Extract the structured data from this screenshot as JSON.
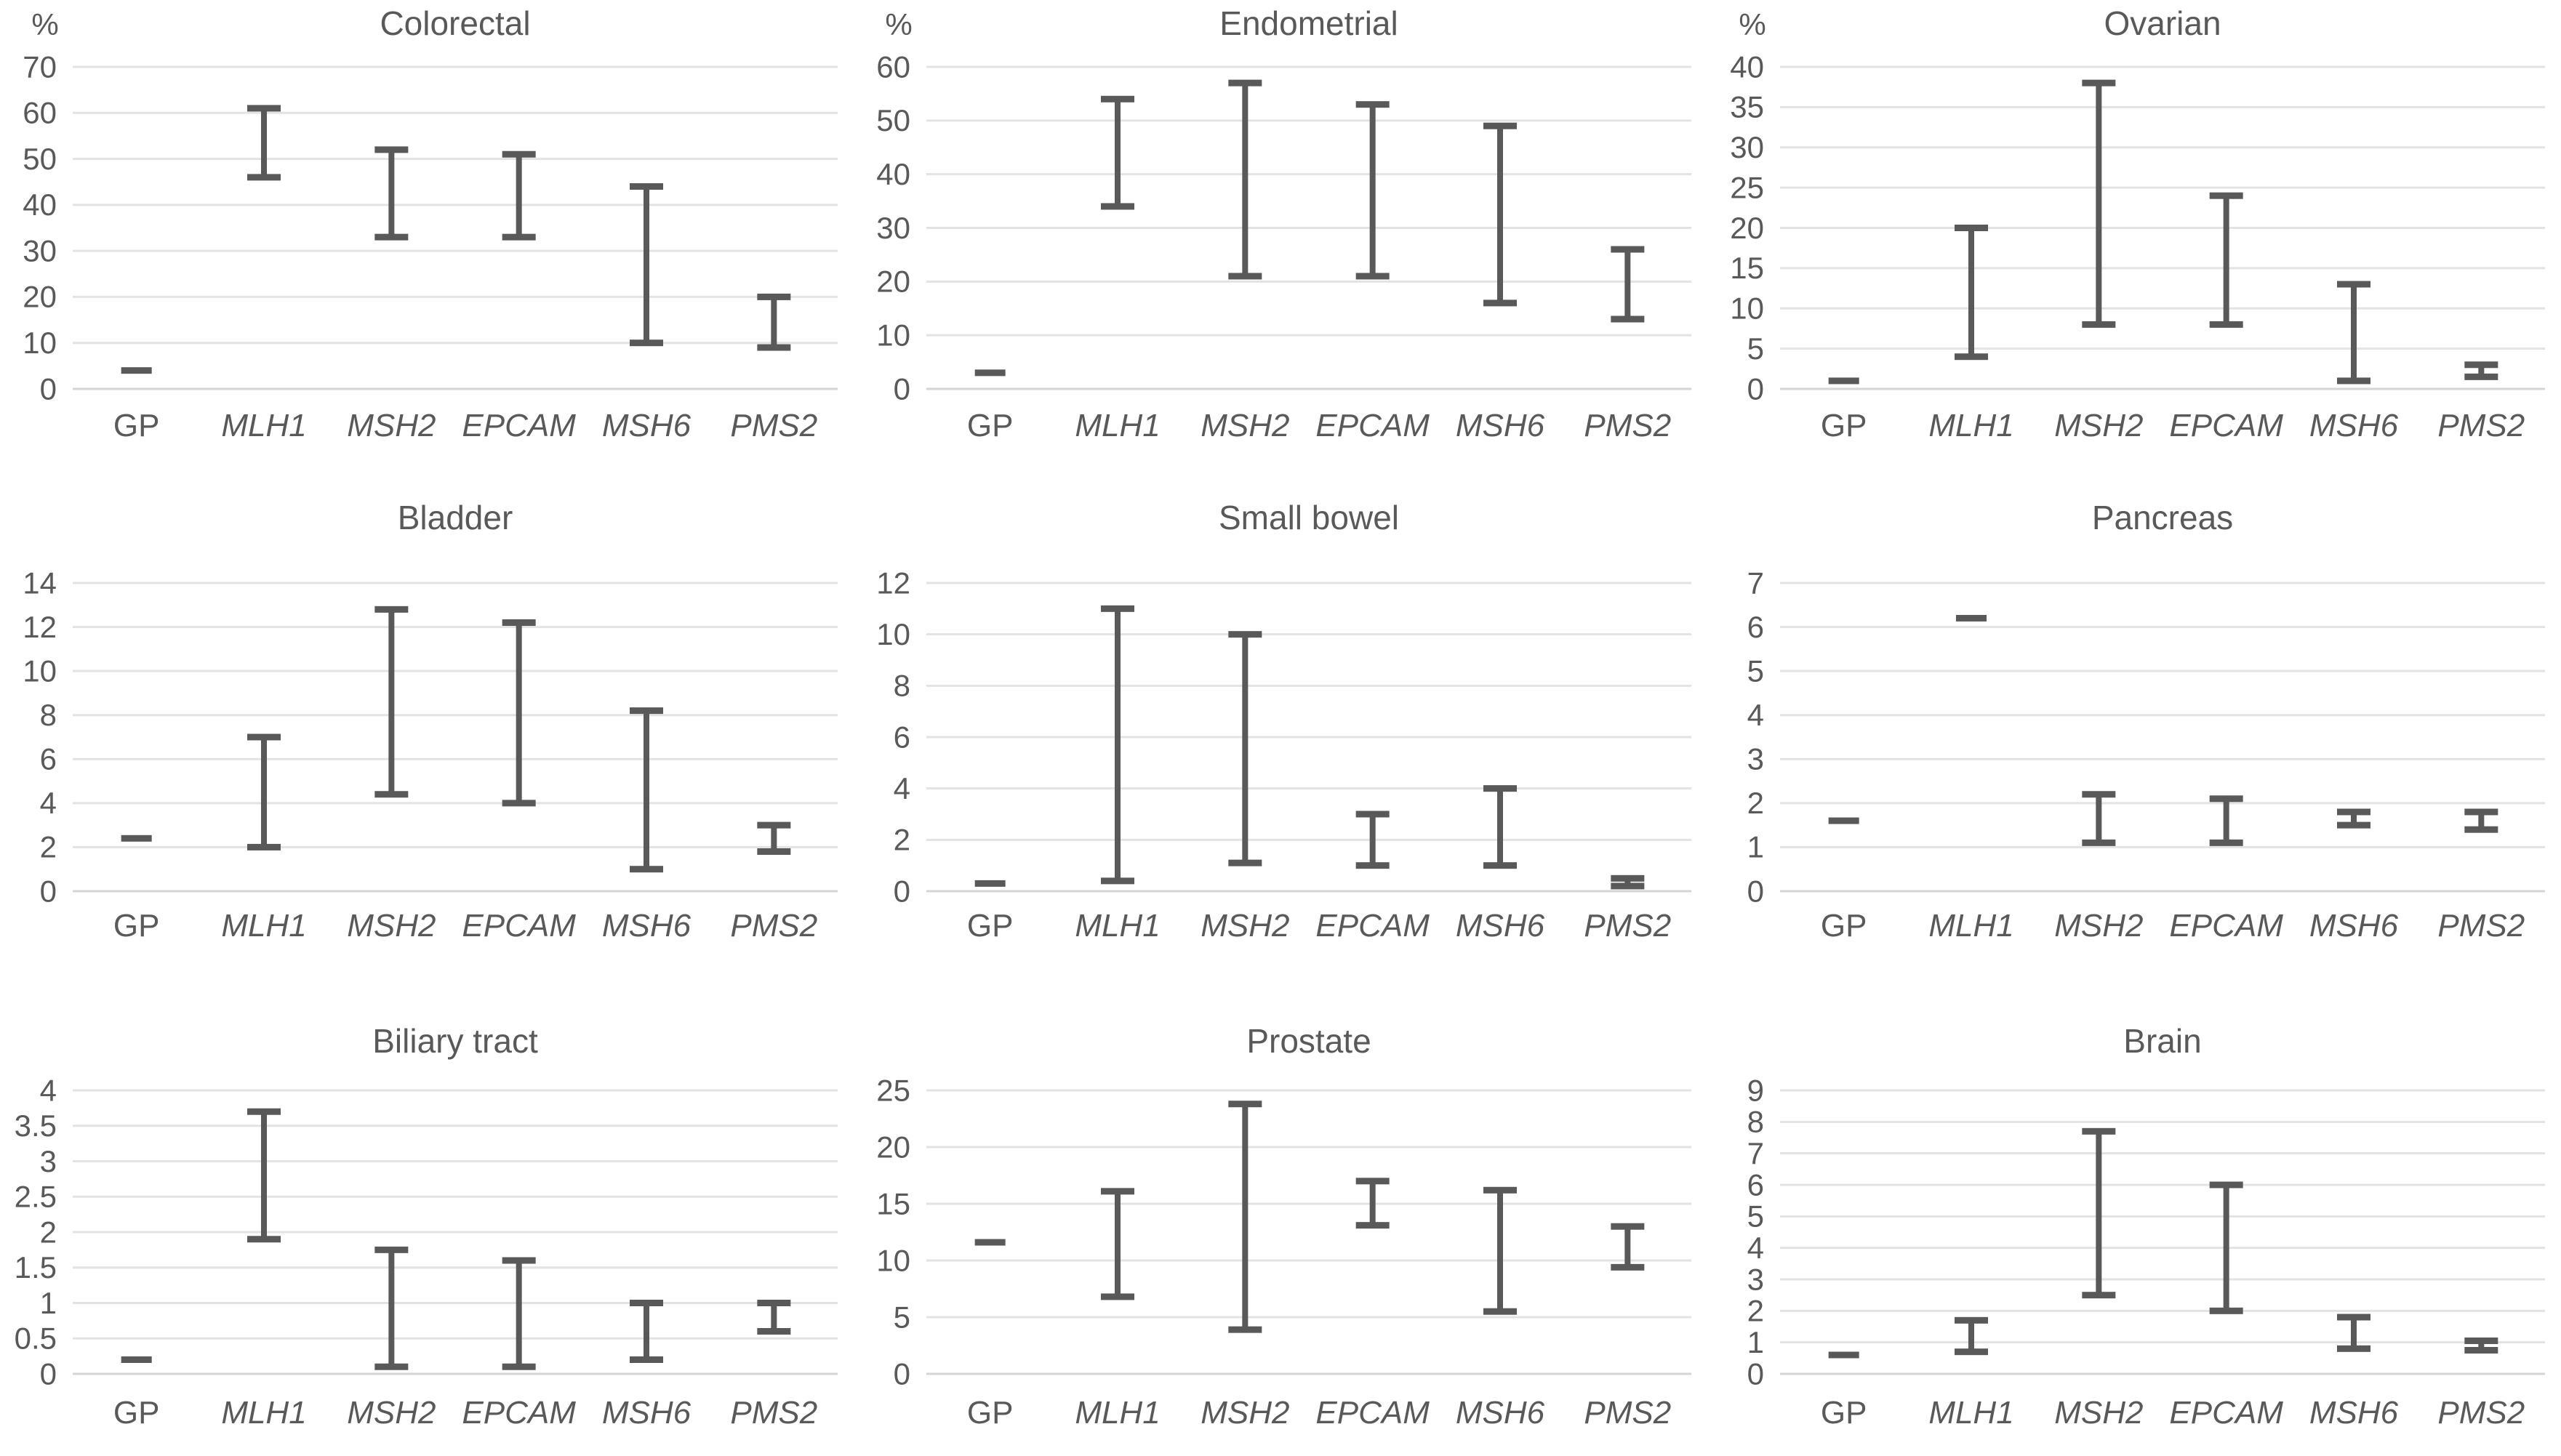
{
  "colors": {
    "bar": "#595959",
    "text": "#595959",
    "gridline": "#e3e3e3",
    "zero_line": "#d5d5d5"
  },
  "chart_data": [
    {
      "type": "range-bar",
      "title": "Colorectal",
      "unit": "%",
      "ylim": [
        0,
        70
      ],
      "yticks": [
        0,
        10,
        20,
        30,
        40,
        50,
        60,
        70
      ],
      "grid": true,
      "categories": [
        {
          "label": "GP",
          "italic": false
        },
        {
          "label": "MLH1",
          "italic": true
        },
        {
          "label": "MSH2",
          "italic": true
        },
        {
          "label": "EPCAM",
          "italic": true
        },
        {
          "label": "MSH6",
          "italic": true
        },
        {
          "label": "PMS2",
          "italic": true
        }
      ],
      "ranges": [
        {
          "category": "GP",
          "low": 4,
          "high": 4
        },
        {
          "category": "MLH1",
          "low": 46,
          "high": 61
        },
        {
          "category": "MSH2",
          "low": 33,
          "high": 52
        },
        {
          "category": "EPCAM",
          "low": 33,
          "high": 51
        },
        {
          "category": "MSH6",
          "low": 10,
          "high": 44
        },
        {
          "category": "PMS2",
          "low": 9,
          "high": 20
        }
      ]
    },
    {
      "type": "range-bar",
      "title": "Endometrial",
      "unit": "%",
      "ylim": [
        0,
        60
      ],
      "yticks": [
        0,
        10,
        20,
        30,
        40,
        50,
        60
      ],
      "grid": true,
      "categories": [
        {
          "label": "GP",
          "italic": false
        },
        {
          "label": "MLH1",
          "italic": true
        },
        {
          "label": "MSH2",
          "italic": true
        },
        {
          "label": "EPCAM",
          "italic": true
        },
        {
          "label": "MSH6",
          "italic": true
        },
        {
          "label": "PMS2",
          "italic": true
        }
      ],
      "ranges": [
        {
          "category": "GP",
          "low": 3,
          "high": 3
        },
        {
          "category": "MLH1",
          "low": 34,
          "high": 54
        },
        {
          "category": "MSH2",
          "low": 21,
          "high": 57
        },
        {
          "category": "EPCAM",
          "low": 21,
          "high": 53
        },
        {
          "category": "MSH6",
          "low": 16,
          "high": 49
        },
        {
          "category": "PMS2",
          "low": 13,
          "high": 26
        }
      ]
    },
    {
      "type": "range-bar",
      "title": "Ovarian",
      "unit": "%",
      "ylim": [
        0,
        40
      ],
      "yticks": [
        0,
        5,
        10,
        15,
        20,
        25,
        30,
        35,
        40
      ],
      "grid": true,
      "categories": [
        {
          "label": "GP",
          "italic": false
        },
        {
          "label": "MLH1",
          "italic": true
        },
        {
          "label": "MSH2",
          "italic": true
        },
        {
          "label": "EPCAM",
          "italic": true
        },
        {
          "label": "MSH6",
          "italic": true
        },
        {
          "label": "PMS2",
          "italic": true
        }
      ],
      "ranges": [
        {
          "category": "GP",
          "low": 1,
          "high": 1
        },
        {
          "category": "MLH1",
          "low": 4,
          "high": 20
        },
        {
          "category": "MSH2",
          "low": 8,
          "high": 38
        },
        {
          "category": "EPCAM",
          "low": 8,
          "high": 24
        },
        {
          "category": "MSH6",
          "low": 1,
          "high": 13
        },
        {
          "category": "PMS2",
          "low": 1.5,
          "high": 3
        }
      ]
    },
    {
      "type": "range-bar",
      "title": "Bladder",
      "unit": null,
      "ylim": [
        0,
        14
      ],
      "yticks": [
        0,
        2,
        4,
        6,
        8,
        10,
        12,
        14
      ],
      "grid": true,
      "categories": [
        {
          "label": "GP",
          "italic": false
        },
        {
          "label": "MLH1",
          "italic": true
        },
        {
          "label": "MSH2",
          "italic": true
        },
        {
          "label": "EPCAM",
          "italic": true
        },
        {
          "label": "MSH6",
          "italic": true
        },
        {
          "label": "PMS2",
          "italic": true
        }
      ],
      "ranges": [
        {
          "category": "GP",
          "low": 2.4,
          "high": 2.4
        },
        {
          "category": "MLH1",
          "low": 2,
          "high": 7
        },
        {
          "category": "MSH2",
          "low": 4.4,
          "high": 12.8
        },
        {
          "category": "EPCAM",
          "low": 4,
          "high": 12.2
        },
        {
          "category": "MSH6",
          "low": 1,
          "high": 8.2
        },
        {
          "category": "PMS2",
          "low": 1.8,
          "high": 3
        }
      ]
    },
    {
      "type": "range-bar",
      "title": "Small bowel",
      "unit": null,
      "ylim": [
        0,
        12
      ],
      "yticks": [
        0,
        2,
        4,
        6,
        8,
        10,
        12
      ],
      "grid": true,
      "categories": [
        {
          "label": "GP",
          "italic": false
        },
        {
          "label": "MLH1",
          "italic": true
        },
        {
          "label": "MSH2",
          "italic": true
        },
        {
          "label": "EPCAM",
          "italic": true
        },
        {
          "label": "MSH6",
          "italic": true
        },
        {
          "label": "PMS2",
          "italic": true
        }
      ],
      "ranges": [
        {
          "category": "GP",
          "low": 0.3,
          "high": 0.3
        },
        {
          "category": "MLH1",
          "low": 0.4,
          "high": 11
        },
        {
          "category": "MSH2",
          "low": 1.1,
          "high": 10
        },
        {
          "category": "EPCAM",
          "low": 1,
          "high": 3
        },
        {
          "category": "MSH6",
          "low": 1,
          "high": 4
        },
        {
          "category": "PMS2",
          "low": 0.2,
          "high": 0.5
        }
      ]
    },
    {
      "type": "range-bar",
      "title": "Pancreas",
      "unit": null,
      "ylim": [
        0,
        7
      ],
      "yticks": [
        0,
        1,
        2,
        3,
        4,
        5,
        6,
        7
      ],
      "grid": true,
      "categories": [
        {
          "label": "GP",
          "italic": false
        },
        {
          "label": "MLH1",
          "italic": true
        },
        {
          "label": "MSH2",
          "italic": true
        },
        {
          "label": "EPCAM",
          "italic": true
        },
        {
          "label": "MSH6",
          "italic": true
        },
        {
          "label": "PMS2",
          "italic": true
        }
      ],
      "ranges": [
        {
          "category": "GP",
          "low": 1.6,
          "high": 1.6
        },
        {
          "category": "MLH1",
          "low": 6.2,
          "high": 6.2
        },
        {
          "category": "MSH2",
          "low": 1.1,
          "high": 2.2
        },
        {
          "category": "EPCAM",
          "low": 1.1,
          "high": 2.1
        },
        {
          "category": "MSH6",
          "low": 1.5,
          "high": 1.8
        },
        {
          "category": "PMS2",
          "low": 1.4,
          "high": 1.8
        }
      ]
    },
    {
      "type": "range-bar",
      "title": "Biliary tract",
      "unit": null,
      "ylim": [
        0,
        4
      ],
      "yticks": [
        0,
        0.5,
        1,
        1.5,
        2,
        2.5,
        3,
        3.5,
        4
      ],
      "grid": true,
      "categories": [
        {
          "label": "GP",
          "italic": false
        },
        {
          "label": "MLH1",
          "italic": true
        },
        {
          "label": "MSH2",
          "italic": true
        },
        {
          "label": "EPCAM",
          "italic": true
        },
        {
          "label": "MSH6",
          "italic": true
        },
        {
          "label": "PMS2",
          "italic": true
        }
      ],
      "ranges": [
        {
          "category": "GP",
          "low": 0.2,
          "high": 0.2
        },
        {
          "category": "MLH1",
          "low": 1.9,
          "high": 3.7
        },
        {
          "category": "MSH2",
          "low": 0.1,
          "high": 1.75
        },
        {
          "category": "EPCAM",
          "low": 0.1,
          "high": 1.6
        },
        {
          "category": "MSH6",
          "low": 0.2,
          "high": 1
        },
        {
          "category": "PMS2",
          "low": 0.6,
          "high": 1
        }
      ]
    },
    {
      "type": "range-bar",
      "title": "Prostate",
      "unit": null,
      "ylim": [
        0,
        25
      ],
      "yticks": [
        0,
        5,
        10,
        15,
        20,
        25
      ],
      "grid": true,
      "categories": [
        {
          "label": "GP",
          "italic": false
        },
        {
          "label": "MLH1",
          "italic": true
        },
        {
          "label": "MSH2",
          "italic": true
        },
        {
          "label": "EPCAM",
          "italic": true
        },
        {
          "label": "MSH6",
          "italic": true
        },
        {
          "label": "PMS2",
          "italic": true
        }
      ],
      "ranges": [
        {
          "category": "GP",
          "low": 11.6,
          "high": 11.6
        },
        {
          "category": "MLH1",
          "low": 6.8,
          "high": 16.1
        },
        {
          "category": "MSH2",
          "low": 3.9,
          "high": 23.8
        },
        {
          "category": "EPCAM",
          "low": 13.1,
          "high": 17
        },
        {
          "category": "MSH6",
          "low": 5.5,
          "high": 16.2
        },
        {
          "category": "PMS2",
          "low": 9.4,
          "high": 13
        }
      ]
    },
    {
      "type": "range-bar",
      "title": "Brain",
      "unit": null,
      "ylim": [
        0,
        9
      ],
      "yticks": [
        0,
        1,
        2,
        3,
        4,
        5,
        6,
        7,
        8,
        9
      ],
      "grid": true,
      "categories": [
        {
          "label": "GP",
          "italic": false
        },
        {
          "label": "MLH1",
          "italic": true
        },
        {
          "label": "MSH2",
          "italic": true
        },
        {
          "label": "EPCAM",
          "italic": true
        },
        {
          "label": "MSH6",
          "italic": true
        },
        {
          "label": "PMS2",
          "italic": true
        }
      ],
      "ranges": [
        {
          "category": "GP",
          "low": 0.6,
          "high": 0.6
        },
        {
          "category": "MLH1",
          "low": 0.7,
          "high": 1.7
        },
        {
          "category": "MSH2",
          "low": 2.5,
          "high": 7.7
        },
        {
          "category": "EPCAM",
          "low": 2,
          "high": 6
        },
        {
          "category": "MSH6",
          "low": 0.8,
          "high": 1.8
        },
        {
          "category": "PMS2",
          "low": 0.75,
          "high": 1.05
        }
      ]
    }
  ]
}
